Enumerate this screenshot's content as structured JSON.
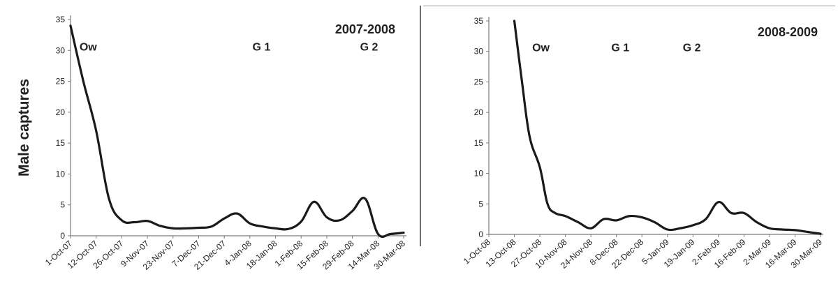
{
  "chart_data": [
    {
      "type": "line",
      "title": "2007-2008",
      "xlabel": "",
      "ylabel": "Male captures",
      "ylim": [
        0,
        35
      ],
      "yticks": [
        0,
        5,
        10,
        15,
        20,
        25,
        30,
        35
      ],
      "grid": false,
      "categories": [
        "1-Oct-07",
        "12-Oct-07",
        "26-Oct-07",
        "9-Nov-07",
        "23-Nov-07",
        "7-Dec-07",
        "21-Dec-07",
        "4-Jan-08",
        "18-Jan-08",
        "1-Feb-08",
        "15-Feb-08",
        "29-Feb-08",
        "14-Mar-08",
        "30-Mar-08"
      ],
      "series": [
        {
          "color": "#1a1a1a",
          "x": [
            0,
            0.5,
            1,
            1.5,
            2,
            2.5,
            3,
            3.5,
            4,
            4.5,
            5,
            5.5,
            6,
            6.5,
            7,
            7.5,
            8,
            8.5,
            9,
            9.5,
            10,
            10.5,
            11,
            11.5,
            12,
            12.5,
            13
          ],
          "values": [
            34,
            25,
            17,
            6,
            2.5,
            2.2,
            2.4,
            1.6,
            1.2,
            1.2,
            1.3,
            1.5,
            2.8,
            3.6,
            2,
            1.5,
            1.2,
            1.1,
            2.3,
            5.5,
            3,
            2.5,
            4,
            6,
            0.3,
            0.3,
            0.5
          ]
        }
      ],
      "annotations": [
        "Ow",
        "G 1",
        "G 2"
      ],
      "annotation_positions": [
        [
          0.35,
          30
        ],
        [
          7.1,
          30
        ],
        [
          11.3,
          30
        ]
      ]
    },
    {
      "type": "line",
      "title": "2008-2009",
      "xlabel": "",
      "ylabel": "",
      "ylim": [
        0,
        35
      ],
      "yticks": [
        0,
        5,
        10,
        15,
        20,
        25,
        30,
        35
      ],
      "grid": false,
      "categories": [
        "1-Oct-08",
        "13-Oct-08",
        "27-Oct-08",
        "10-Nov-08",
        "24-Nov-08",
        "8-Dec-08",
        "22-Dec-08",
        "5-Jan-09",
        "19-Jan-09",
        "2-Feb-09",
        "16-Feb-09",
        "2-Mar-09",
        "16-Mar-09",
        "30-Mar-09"
      ],
      "series": [
        {
          "color": "#1a1a1a",
          "x": [
            1,
            1.3,
            1.6,
            2,
            2.3,
            2.6,
            3,
            3.5,
            4,
            4.5,
            5,
            5.5,
            6,
            6.5,
            7,
            7.5,
            8,
            8.5,
            9,
            9.5,
            10,
            10.5,
            11,
            11.5,
            12,
            12.5,
            13
          ],
          "values": [
            35,
            25,
            16,
            11,
            5,
            3.5,
            3,
            2,
            1,
            2.5,
            2.3,
            3,
            2.8,
            2,
            0.8,
            1,
            1.5,
            2.5,
            5.3,
            3.5,
            3.5,
            2,
            1,
            0.8,
            0.7,
            0.4,
            0.1
          ]
        }
      ],
      "annotations": [
        "Ow",
        "G 1",
        "G 2"
      ],
      "annotation_positions": [
        [
          1.7,
          30
        ],
        [
          4.8,
          30
        ],
        [
          7.6,
          30
        ]
      ]
    }
  ]
}
